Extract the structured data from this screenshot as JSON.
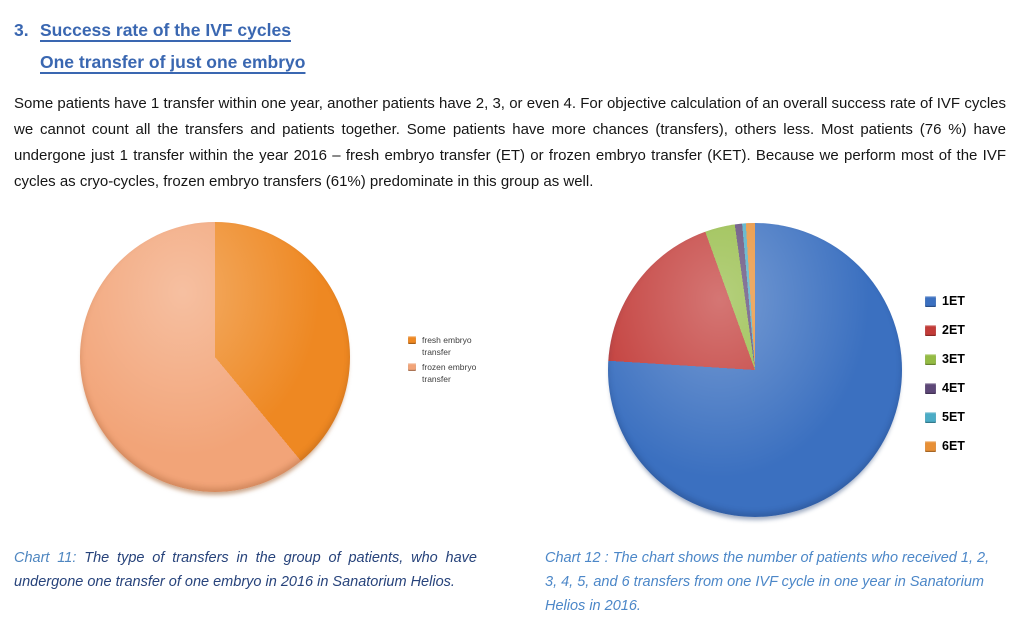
{
  "heading": {
    "number": "3.",
    "line1": "Success rate of the IVF cycles",
    "line2": "One transfer of just one embryo",
    "color": "#3A67B1"
  },
  "paragraph": {
    "text": "Some patients have 1 transfer within one year, another patients have 2, 3, or even 4. For objective calculation of an overall success rate of IVF cycles we cannot count all the transfers and patients together. Some patients have more chances (transfers), others less. Most patients (76 %) have undergone just 1 transfer within the year 2016 – fresh embryo transfer (ET) or frozen embryo transfer (KET). Because we perform most of the IVF cycles as cryo-cycles, frozen embryo transfers (61%) predominate in this group as well."
  },
  "chart_data": [
    {
      "type": "pie",
      "title": "",
      "categories": [
        "fresh embryo transfer",
        "frozen embryo transfer"
      ],
      "values": [
        39,
        61
      ],
      "values_unit": "percent",
      "colors": [
        "#EE8822",
        "#F2A478"
      ],
      "start_angle_deg": 0,
      "direction": "clockwise",
      "legend_position": "right"
    },
    {
      "type": "pie",
      "title": "",
      "categories": [
        "1ET",
        "2ET",
        "3ET",
        "4ET",
        "5ET",
        "6ET"
      ],
      "values": [
        76,
        18.5,
        3.3,
        0.8,
        0.4,
        1.0
      ],
      "values_unit": "percent",
      "colors": [
        "#3B70C0",
        "#C23B38",
        "#94BB44",
        "#5D4777",
        "#4BACC6",
        "#E89036"
      ],
      "start_angle_deg": 0,
      "direction": "clockwise",
      "legend_position": "right"
    }
  ],
  "captions": {
    "left": {
      "label": "Chart 11:",
      "text": " The type of transfers in the group of patients, who have undergone one transfer of one embryo in 2016 in Sanatorium Helios."
    },
    "right": {
      "label": "Chart 12 :",
      "text": " The chart shows the number of patients who received 1, 2, 3, 4, 5, and 6 transfers from one IVF cycle in one year in Sanatorium Helios in 2016."
    }
  }
}
